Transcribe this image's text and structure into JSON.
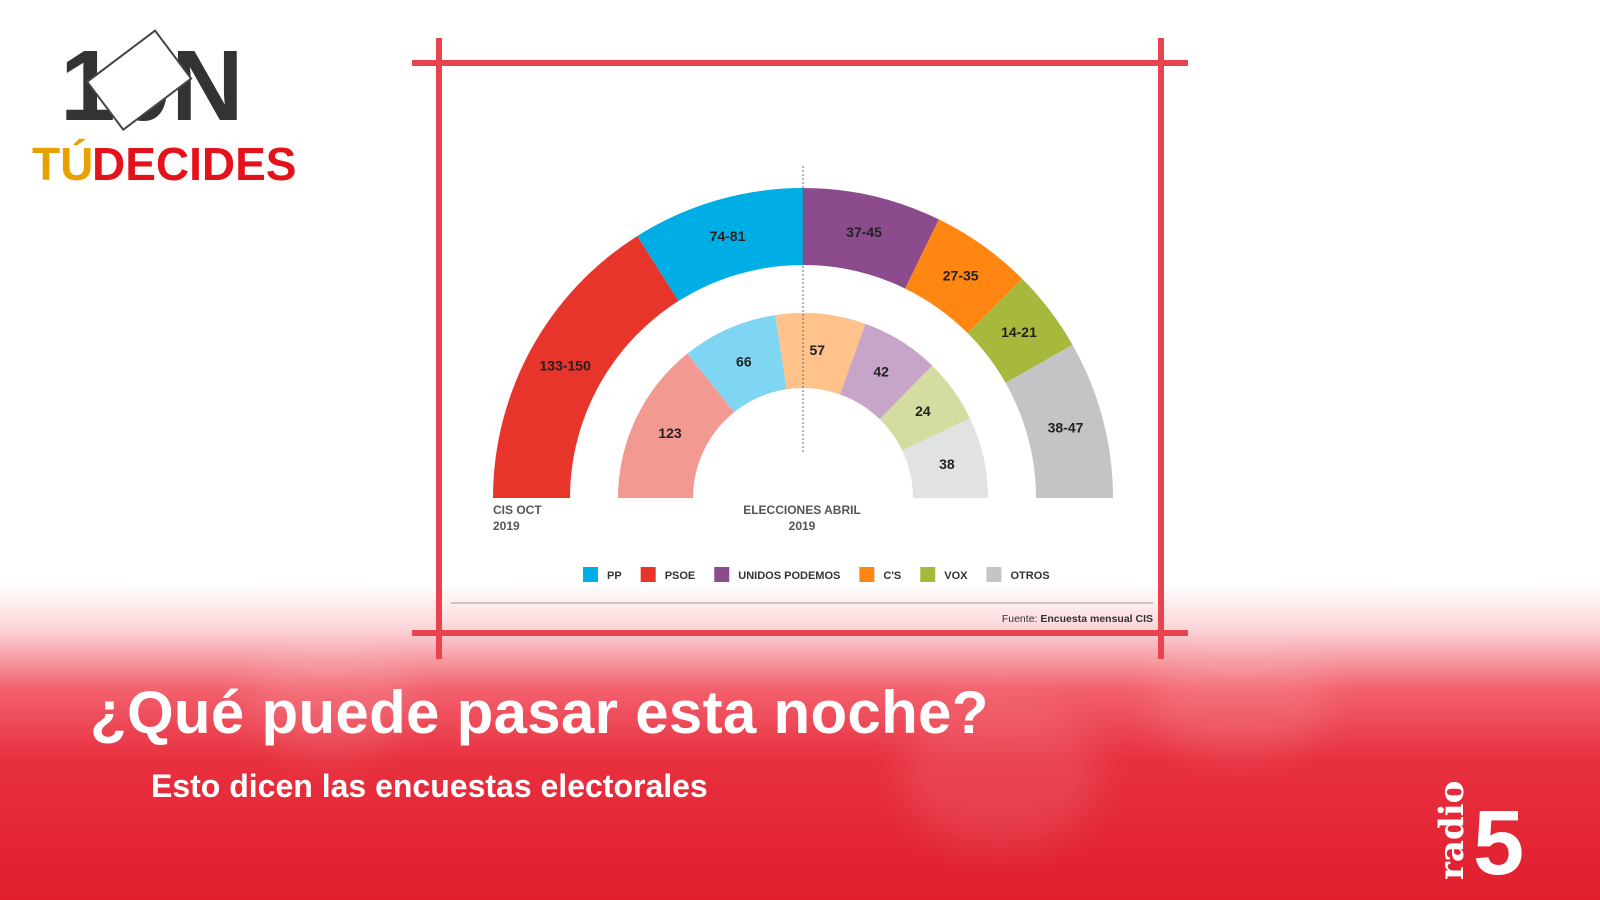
{
  "logo": {
    "top_text": "10N",
    "bottom_text_a": "TÚ",
    "bottom_text_b": "DECIDES"
  },
  "headline": {
    "title": "¿Qué puede pasar esta noche?",
    "subtitle": "Esto dicen las encuestas electorales"
  },
  "channel_logo": {
    "text_small": "radio",
    "text_big": "5"
  },
  "accent_color": "#e8434f",
  "chart_data": {
    "type": "pie",
    "subtype": "nested semicircle (hemicycle)",
    "series": [
      {
        "name": "CIS OCT 2019",
        "caption_line1": "CIS OCT",
        "caption_line2": "2019",
        "ring": "outer",
        "categories": [
          "PSOE",
          "PP",
          "UNIDOS PODEMOS",
          "C'S",
          "VOX",
          "OTROS"
        ],
        "labels": [
          "133-150",
          "74-81",
          "37-45",
          "27-35",
          "14-21",
          "38-47"
        ],
        "ranges": [
          [
            133,
            150
          ],
          [
            74,
            81
          ],
          [
            37,
            45
          ],
          [
            27,
            35
          ],
          [
            14,
            21
          ],
          [
            38,
            47
          ]
        ]
      },
      {
        "name": "ELECCIONES ABRIL 2019",
        "caption_line1": "ELECCIONES ABRIL",
        "caption_line2": "2019",
        "ring": "inner",
        "categories": [
          "PSOE",
          "PP",
          "C'S",
          "UNIDOS PODEMOS",
          "VOX",
          "OTROS"
        ],
        "labels": [
          "123",
          "66",
          "57",
          "42",
          "24",
          "38"
        ],
        "values": [
          123,
          66,
          57,
          42,
          24,
          38
        ]
      }
    ],
    "legend": {
      "placement": "bottom",
      "items": [
        {
          "label": "PP",
          "color": "#00aee6"
        },
        {
          "label": "PSOE",
          "color": "#e8352b"
        },
        {
          "label": "UNIDOS PODEMOS",
          "color": "#8c4b8c"
        },
        {
          "label": "C'S",
          "color": "#ff8610"
        },
        {
          "label": "VOX",
          "color": "#a8b83c"
        },
        {
          "label": "OTROS",
          "color": "#c3c4c6"
        }
      ]
    },
    "colors_outer": {
      "PSOE": "#e8352b",
      "PP": "#00aee6",
      "UNIDOS PODEMOS": "#8c4b8c",
      "C'S": "#ff8610",
      "VOX": "#a8b83c",
      "OTROS": "#c3c4c6"
    },
    "colors_inner": {
      "PSOE": "#f29a92",
      "PP": "#7fd6f2",
      "UNIDOS PODEMOS": "#c6a5c9",
      "C'S": "#ffc28a",
      "VOX": "#d4dca0",
      "OTROS": "#e1e2e3"
    },
    "source_prefix": "Fuente:",
    "source": "Encuesta mensual CIS"
  }
}
